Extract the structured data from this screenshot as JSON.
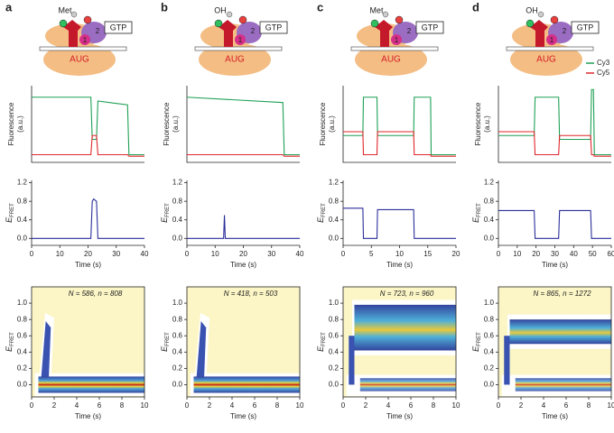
{
  "panels": [
    {
      "letter": "a",
      "diagram": {
        "ligand": "Met",
        "factor": "GTP",
        "codon": "AUG",
        "domain1": "1",
        "domain2": "2"
      }
    },
    {
      "letter": "b",
      "diagram": {
        "ligand": "OH",
        "factor": "GTP",
        "codon": "AUG",
        "domain1": "1",
        "domain2": "2"
      }
    },
    {
      "letter": "c",
      "diagram": {
        "ligand": "Met",
        "factor": "GTP",
        "codon": "AUG",
        "domain1": "1",
        "domain2": "2"
      }
    },
    {
      "letter": "d",
      "diagram": {
        "ligand": "OH",
        "factor": "GTP",
        "codon": "AUG",
        "domain1": "1",
        "domain2": "2"
      }
    }
  ],
  "chart_data": [
    {
      "type": "line",
      "ylabel": [
        "Fluorescence",
        "(a.u.)"
      ],
      "xlim": [
        0,
        40
      ],
      "ylim": [
        0,
        1
      ],
      "x": [
        0,
        21,
        21.5,
        23,
        23.5,
        34,
        34.5,
        40
      ],
      "series": [
        {
          "color": "#1fa055",
          "values": [
            0.85,
            0.85,
            0.3,
            0.3,
            0.8,
            0.75,
            0.1,
            0.1
          ]
        },
        {
          "color": "#e0262a",
          "values": [
            0.1,
            0.1,
            0.35,
            0.35,
            0.1,
            0.1,
            0.08,
            0.08
          ]
        }
      ]
    },
    {
      "type": "line",
      "ylabel_symbol": "E",
      "ylabel_subscript": "FRET",
      "xlabel": "Time (s)",
      "xlim": [
        0,
        40
      ],
      "ylim": [
        -0.15,
        1.25
      ],
      "xticks": [
        0,
        10,
        20,
        30,
        40
      ],
      "yticks": [
        {
          "value": 0,
          "label": "0.0"
        },
        0.4,
        0.8,
        1.2
      ],
      "color": "#2b2f99",
      "x": [
        0,
        21,
        21.5,
        22,
        23,
        23.5,
        40
      ],
      "values": [
        0,
        0,
        0.8,
        0.85,
        0.8,
        0,
        0
      ]
    },
    {
      "type": "heatmap",
      "annotation": "N = 586, n = 808",
      "ylabel_symbol": "E",
      "ylabel_subscript": "FRET",
      "xlabel": "Time (s)",
      "xlim": [
        0,
        10
      ],
      "ylim": [
        -0.15,
        1.2
      ],
      "xticks": [
        0,
        2,
        4,
        6,
        8,
        10
      ],
      "yticks": [
        {
          "value": 0,
          "label": "0.0"
        },
        0.2,
        0.4,
        0.6,
        0.8,
        {
          "value": 1,
          "label": "1.0"
        }
      ],
      "background_color": "#fcf6c6"
    },
    {
      "type": "line",
      "ylabel": [
        "Fluorescence",
        "(a.u.)"
      ],
      "xlim": [
        0,
        40
      ],
      "ylim": [
        0,
        1
      ],
      "x": [
        0,
        34,
        34.5,
        40
      ],
      "series": [
        {
          "color": "#1fa055",
          "values": [
            0.85,
            0.78,
            0.1,
            0.1
          ]
        },
        {
          "color": "#e0262a",
          "values": [
            0.1,
            0.1,
            0.08,
            0.08
          ]
        }
      ]
    },
    {
      "type": "line",
      "ylabel_symbol": "E",
      "ylabel_subscript": "FRET",
      "xlabel": "Time (s)",
      "xlim": [
        0,
        40
      ],
      "ylim": [
        -0.15,
        1.25
      ],
      "xticks": [
        0,
        10,
        20,
        30,
        40
      ],
      "yticks": [
        {
          "value": 0,
          "label": "0.0"
        },
        0.4,
        0.8,
        1.2
      ],
      "color": "#2b2f99",
      "x": [
        0,
        13,
        13.3,
        13.6,
        40
      ],
      "values": [
        0,
        0,
        0.5,
        0,
        0
      ]
    },
    {
      "type": "heatmap",
      "annotation": "N = 418, n = 503",
      "ylabel_symbol": "E",
      "ylabel_subscript": "FRET",
      "xlabel": "Time (s)",
      "xlim": [
        0,
        10
      ],
      "ylim": [
        -0.15,
        1.2
      ],
      "xticks": [
        0,
        2,
        4,
        6,
        8,
        10
      ],
      "yticks": [
        {
          "value": 0,
          "label": "0.0"
        },
        0.2,
        0.4,
        0.6,
        0.8,
        {
          "value": 1,
          "label": "1.0"
        }
      ],
      "background_color": "#fcf6c6"
    },
    {
      "type": "line",
      "ylabel": [
        "Fluorescence",
        "(a.u.)"
      ],
      "xlim": [
        0,
        20
      ],
      "ylim": [
        0,
        1
      ],
      "x": [
        0,
        3.5,
        3.6,
        6,
        6.1,
        12.5,
        12.6,
        15.5,
        15.6,
        20
      ],
      "series": [
        {
          "color": "#1fa055",
          "values": [
            0.35,
            0.35,
            0.85,
            0.85,
            0.35,
            0.35,
            0.85,
            0.85,
            0.1,
            0.1
          ]
        },
        {
          "color": "#e0262a",
          "values": [
            0.4,
            0.4,
            0.1,
            0.1,
            0.4,
            0.4,
            0.1,
            0.1,
            0.08,
            0.08
          ]
        }
      ]
    },
    {
      "type": "line",
      "ylabel_symbol": "E",
      "ylabel_subscript": "FRET",
      "xlabel": "Time (s)",
      "xlim": [
        0,
        20
      ],
      "ylim": [
        -0.15,
        1.25
      ],
      "xticks": [
        0,
        5,
        10,
        15,
        20
      ],
      "yticks": [
        {
          "value": 0,
          "label": "0.0"
        },
        0.4,
        0.8,
        1.2
      ],
      "color": "#2b2f99",
      "x": [
        0,
        3.5,
        3.6,
        6,
        6.1,
        12.5,
        12.6,
        20
      ],
      "values": [
        0.65,
        0.65,
        0,
        0,
        0.62,
        0.62,
        0,
        0
      ]
    },
    {
      "type": "heatmap",
      "annotation": "N = 723, n = 960",
      "ylabel_symbol": "E",
      "ylabel_subscript": "FRET",
      "xlabel": "Time (s)",
      "xlim": [
        0,
        10
      ],
      "ylim": [
        -0.15,
        1.2
      ],
      "xticks": [
        0,
        2,
        4,
        6,
        8,
        10
      ],
      "yticks": [
        {
          "value": 0,
          "label": "0.0"
        },
        0.2,
        0.4,
        0.6,
        0.8,
        {
          "value": 1,
          "label": "1.0"
        }
      ],
      "background_color": "#fcf6c6"
    },
    {
      "type": "line",
      "ylabel": [
        "Fluorescence",
        "(a.u.)"
      ],
      "xlim": [
        0,
        60
      ],
      "ylim": [
        0,
        1
      ],
      "legend": "upper right",
      "x": [
        0,
        19,
        19.5,
        32,
        32.5,
        49,
        49.5,
        50.5,
        51,
        60
      ],
      "series": [
        {
          "name": "Cy3",
          "color": "#1fa055",
          "values": [
            0.35,
            0.35,
            0.85,
            0.85,
            0.3,
            0.3,
            0.95,
            0.95,
            0.1,
            0.1
          ]
        },
        {
          "name": "Cy5",
          "color": "#e0262a",
          "values": [
            0.4,
            0.4,
            0.1,
            0.1,
            0.35,
            0.35,
            0.1,
            0.1,
            0.08,
            0.08
          ]
        }
      ]
    },
    {
      "type": "line",
      "ylabel_symbol": "E",
      "ylabel_subscript": "FRET",
      "xlabel": "Time (s)",
      "xlim": [
        0,
        60
      ],
      "ylim": [
        -0.15,
        1.25
      ],
      "xticks": [
        0,
        10,
        20,
        30,
        40,
        50,
        60
      ],
      "yticks": [
        {
          "value": 0,
          "label": "0.0"
        },
        0.4,
        0.8,
        1.2
      ],
      "color": "#2b2f99",
      "x": [
        0,
        19,
        19.5,
        32,
        32.5,
        49,
        49.5,
        60
      ],
      "values": [
        0.6,
        0.6,
        0,
        0,
        0.6,
        0.6,
        0,
        0
      ]
    },
    {
      "type": "heatmap",
      "annotation": "N = 865, n = 1272",
      "ylabel_symbol": "E",
      "ylabel_subscript": "FRET",
      "xlabel": "Time (s)",
      "xlim": [
        0,
        10
      ],
      "ylim": [
        -0.15,
        1.2
      ],
      "xticks": [
        0,
        2,
        4,
        6,
        8,
        10
      ],
      "yticks": [
        {
          "value": 0,
          "label": "0.0"
        },
        0.2,
        0.4,
        0.6,
        0.8,
        {
          "value": 1,
          "label": "1.0"
        }
      ],
      "background_color": "#fcf6c6"
    }
  ]
}
